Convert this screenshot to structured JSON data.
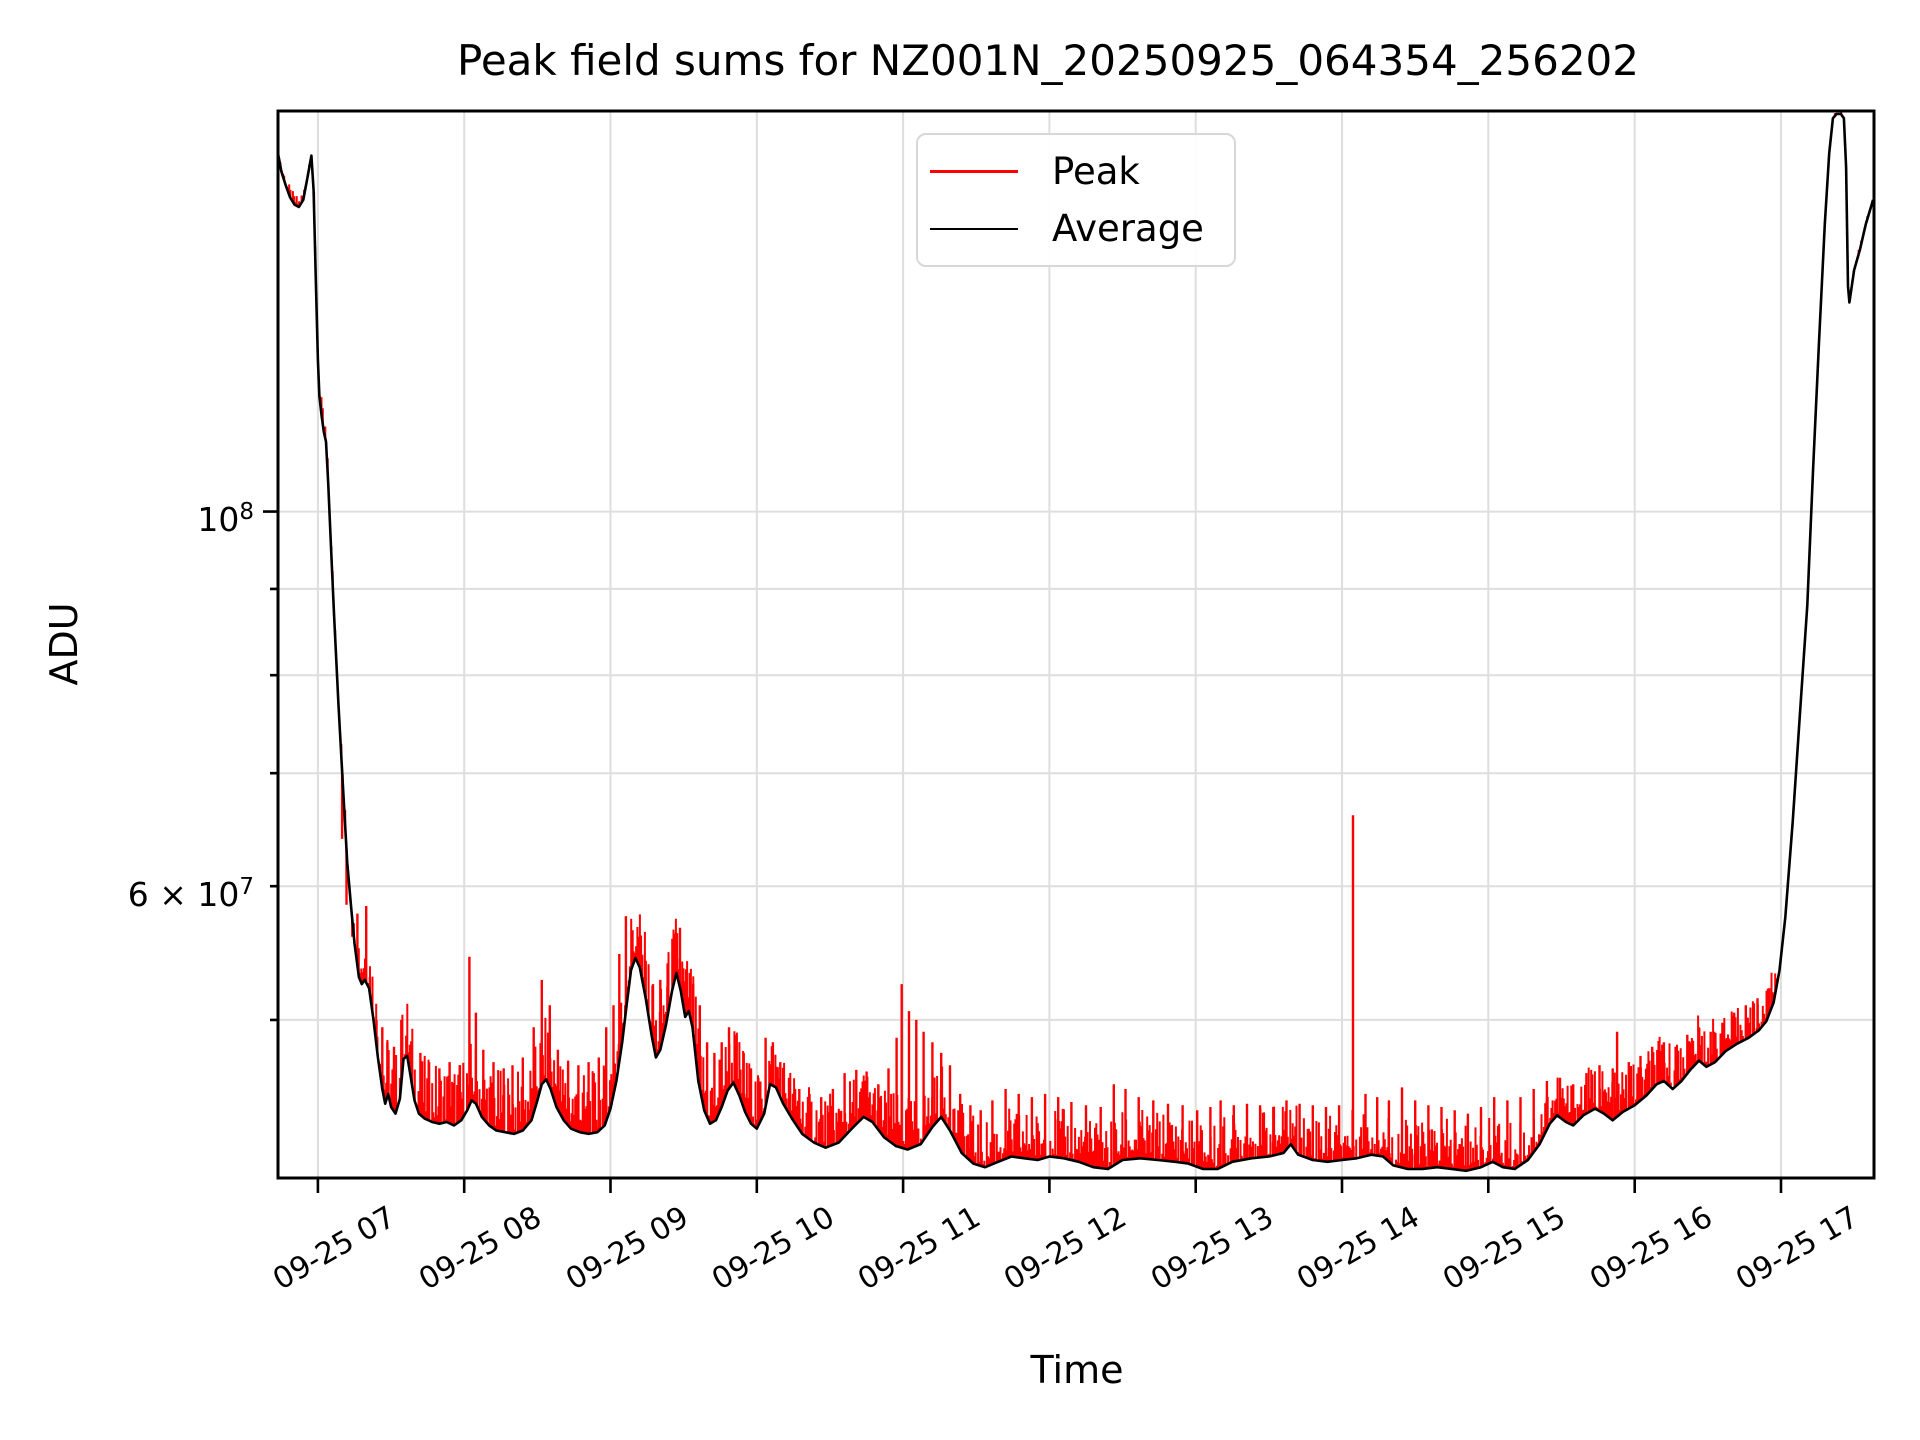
{
  "title": "Peak field sums for NZ001N_20250925_064354_256202",
  "axes": {
    "xlabel": "Time",
    "ylabel": "ADU",
    "x_tick_labels": [
      "09-25 07",
      "09-25 08",
      "09-25 09",
      "09-25 10",
      "09-25 11",
      "09-25 12",
      "09-25 13",
      "09-25 14",
      "09-25 15",
      "09-25 16",
      "09-25 17"
    ],
    "x_tick_hours": [
      7,
      8,
      9,
      10,
      11,
      12,
      13,
      14,
      15,
      16,
      17
    ],
    "y_tick_labels": [
      {
        "coeff": "",
        "base": "10",
        "exp": "8",
        "value_1e7": 10
      },
      {
        "coeff": "6 × ",
        "base": "10",
        "exp": "7",
        "value_1e7": 6
      }
    ]
  },
  "legend": {
    "items": [
      {
        "label": "Peak",
        "color": "#ff0000"
      },
      {
        "label": "Average",
        "color": "#000000"
      }
    ]
  },
  "colors": {
    "peak": "#ff0000",
    "average": "#000000",
    "grid": "#dedede",
    "spine": "#000000",
    "background": "#ffffff"
  },
  "chart_data": {
    "type": "line",
    "title": "Peak field sums for NZ001N_20250925_064354_256202",
    "xlabel": "Time",
    "ylabel": "ADU",
    "y_scale": "log",
    "grid": "both",
    "legend_position": "upper center",
    "x_unit": "hours on 09-25",
    "x_range_hours": [
      6.727,
      17.636
    ],
    "value_unit_adu": 10000000,
    "y_range_adu": [
      40300000,
      172700000
    ],
    "y_gridline_values_1e7": [
      10,
      9,
      8,
      7,
      6,
      5
    ],
    "y_major_value_1e7": 10,
    "series_names": [
      "Peak",
      "Average"
    ],
    "average_points": [
      [
        6.727,
        16.3
      ],
      [
        6.75,
        15.9
      ],
      [
        6.78,
        15.6
      ],
      [
        6.81,
        15.35
      ],
      [
        6.84,
        15.2
      ],
      [
        6.87,
        15.15
      ],
      [
        6.9,
        15.3
      ],
      [
        6.93,
        15.8
      ],
      [
        6.955,
        16.25
      ],
      [
        6.97,
        15.5
      ],
      [
        6.985,
        13.8
      ],
      [
        7.0,
        12.3
      ],
      [
        7.01,
        11.7
      ],
      [
        7.025,
        11.4
      ],
      [
        7.04,
        11.15
      ],
      [
        7.055,
        11.0
      ],
      [
        7.07,
        10.4
      ],
      [
        7.09,
        9.5
      ],
      [
        7.11,
        8.7
      ],
      [
        7.14,
        7.7
      ],
      [
        7.17,
        6.9
      ],
      [
        7.2,
        6.2
      ],
      [
        7.225,
        5.85
      ],
      [
        7.25,
        5.55
      ],
      [
        7.28,
        5.3
      ],
      [
        7.3,
        5.25
      ],
      [
        7.32,
        5.28
      ],
      [
        7.35,
        5.22
      ],
      [
        7.38,
        5.0
      ],
      [
        7.41,
        4.75
      ],
      [
        7.44,
        4.55
      ],
      [
        7.46,
        4.46
      ],
      [
        7.48,
        4.52
      ],
      [
        7.5,
        4.44
      ],
      [
        7.53,
        4.4
      ],
      [
        7.56,
        4.49
      ],
      [
        7.585,
        4.74
      ],
      [
        7.61,
        4.76
      ],
      [
        7.63,
        4.65
      ],
      [
        7.66,
        4.48
      ],
      [
        7.69,
        4.4
      ],
      [
        7.73,
        4.37
      ],
      [
        7.78,
        4.35
      ],
      [
        7.83,
        4.34
      ],
      [
        7.88,
        4.35
      ],
      [
        7.93,
        4.33
      ],
      [
        7.98,
        4.36
      ],
      [
        8.02,
        4.42
      ],
      [
        8.05,
        4.48
      ],
      [
        8.08,
        4.46
      ],
      [
        8.12,
        4.38
      ],
      [
        8.17,
        4.33
      ],
      [
        8.22,
        4.3
      ],
      [
        8.28,
        4.29
      ],
      [
        8.34,
        4.28
      ],
      [
        8.4,
        4.3
      ],
      [
        8.46,
        4.36
      ],
      [
        8.5,
        4.48
      ],
      [
        8.53,
        4.58
      ],
      [
        8.56,
        4.61
      ],
      [
        8.59,
        4.55
      ],
      [
        8.63,
        4.44
      ],
      [
        8.68,
        4.36
      ],
      [
        8.73,
        4.31
      ],
      [
        8.79,
        4.29
      ],
      [
        8.85,
        4.28
      ],
      [
        8.91,
        4.29
      ],
      [
        8.96,
        4.33
      ],
      [
        9.0,
        4.43
      ],
      [
        9.04,
        4.6
      ],
      [
        9.08,
        4.85
      ],
      [
        9.11,
        5.1
      ],
      [
        9.14,
        5.35
      ],
      [
        9.17,
        5.44
      ],
      [
        9.2,
        5.37
      ],
      [
        9.24,
        5.15
      ],
      [
        9.28,
        4.9
      ],
      [
        9.31,
        4.75
      ],
      [
        9.34,
        4.8
      ],
      [
        9.38,
        4.97
      ],
      [
        9.42,
        5.2
      ],
      [
        9.45,
        5.33
      ],
      [
        9.48,
        5.2
      ],
      [
        9.51,
        5.02
      ],
      [
        9.535,
        5.06
      ],
      [
        9.56,
        4.95
      ],
      [
        9.6,
        4.6
      ],
      [
        9.64,
        4.42
      ],
      [
        9.68,
        4.34
      ],
      [
        9.72,
        4.36
      ],
      [
        9.76,
        4.44
      ],
      [
        9.8,
        4.54
      ],
      [
        9.84,
        4.59
      ],
      [
        9.88,
        4.51
      ],
      [
        9.92,
        4.41
      ],
      [
        9.96,
        4.34
      ],
      [
        10.0,
        4.31
      ],
      [
        10.05,
        4.4
      ],
      [
        10.09,
        4.58
      ],
      [
        10.13,
        4.56
      ],
      [
        10.18,
        4.46
      ],
      [
        10.24,
        4.37
      ],
      [
        10.31,
        4.28
      ],
      [
        10.39,
        4.23
      ],
      [
        10.47,
        4.2
      ],
      [
        10.56,
        4.23
      ],
      [
        10.66,
        4.32
      ],
      [
        10.73,
        4.38
      ],
      [
        10.79,
        4.35
      ],
      [
        10.87,
        4.26
      ],
      [
        10.95,
        4.21
      ],
      [
        11.03,
        4.19
      ],
      [
        11.12,
        4.22
      ],
      [
        11.2,
        4.32
      ],
      [
        11.26,
        4.38
      ],
      [
        11.32,
        4.3
      ],
      [
        11.4,
        4.17
      ],
      [
        11.48,
        4.11
      ],
      [
        11.56,
        4.09
      ],
      [
        11.65,
        4.12
      ],
      [
        11.74,
        4.15
      ],
      [
        11.83,
        4.14
      ],
      [
        11.92,
        4.13
      ],
      [
        12.0,
        4.15
      ],
      [
        12.1,
        4.14
      ],
      [
        12.2,
        4.12
      ],
      [
        12.3,
        4.09
      ],
      [
        12.4,
        4.08
      ],
      [
        12.5,
        4.13
      ],
      [
        12.62,
        4.14
      ],
      [
        12.74,
        4.13
      ],
      [
        12.86,
        4.12
      ],
      [
        12.95,
        4.11
      ],
      [
        13.05,
        4.08
      ],
      [
        13.15,
        4.08
      ],
      [
        13.25,
        4.12
      ],
      [
        13.38,
        4.14
      ],
      [
        13.5,
        4.15
      ],
      [
        13.6,
        4.17
      ],
      [
        13.65,
        4.22
      ],
      [
        13.7,
        4.16
      ],
      [
        13.8,
        4.13
      ],
      [
        13.9,
        4.12
      ],
      [
        14.0,
        4.13
      ],
      [
        14.1,
        4.14
      ],
      [
        14.2,
        4.16
      ],
      [
        14.28,
        4.15
      ],
      [
        14.35,
        4.1
      ],
      [
        14.45,
        4.08
      ],
      [
        14.55,
        4.08
      ],
      [
        14.65,
        4.09
      ],
      [
        14.75,
        4.08
      ],
      [
        14.85,
        4.07
      ],
      [
        14.95,
        4.09
      ],
      [
        15.03,
        4.12
      ],
      [
        15.1,
        4.09
      ],
      [
        15.18,
        4.08
      ],
      [
        15.27,
        4.13
      ],
      [
        15.35,
        4.22
      ],
      [
        15.42,
        4.34
      ],
      [
        15.47,
        4.39
      ],
      [
        15.53,
        4.35
      ],
      [
        15.58,
        4.33
      ],
      [
        15.65,
        4.39
      ],
      [
        15.73,
        4.43
      ],
      [
        15.79,
        4.4
      ],
      [
        15.85,
        4.36
      ],
      [
        15.92,
        4.41
      ],
      [
        16.0,
        4.45
      ],
      [
        16.08,
        4.51
      ],
      [
        16.15,
        4.58
      ],
      [
        16.2,
        4.6
      ],
      [
        16.26,
        4.55
      ],
      [
        16.32,
        4.6
      ],
      [
        16.38,
        4.67
      ],
      [
        16.44,
        4.73
      ],
      [
        16.49,
        4.69
      ],
      [
        16.55,
        4.72
      ],
      [
        16.62,
        4.79
      ],
      [
        16.7,
        4.84
      ],
      [
        16.78,
        4.88
      ],
      [
        16.85,
        4.93
      ],
      [
        16.9,
        4.99
      ],
      [
        16.95,
        5.12
      ],
      [
        16.99,
        5.35
      ],
      [
        17.03,
        5.75
      ],
      [
        17.08,
        6.55
      ],
      [
        17.13,
        7.6
      ],
      [
        17.18,
        8.8
      ],
      [
        17.22,
        10.6
      ],
      [
        17.26,
        12.6
      ],
      [
        17.3,
        14.8
      ],
      [
        17.33,
        16.3
      ],
      [
        17.355,
        17.1
      ],
      [
        17.38,
        17.2
      ],
      [
        17.41,
        17.2
      ],
      [
        17.43,
        17.1
      ],
      [
        17.445,
        16.0
      ],
      [
        17.458,
        13.6
      ],
      [
        17.468,
        13.3
      ],
      [
        17.5,
        13.9
      ],
      [
        17.54,
        14.3
      ],
      [
        17.58,
        14.8
      ],
      [
        17.63,
        15.3
      ]
    ],
    "peak_spikes": [
      [
        7.165,
        6.4
      ],
      [
        7.195,
        5.85
      ],
      [
        7.235,
        5.6
      ],
      [
        7.27,
        5.78
      ],
      [
        7.33,
        5.84
      ],
      [
        7.355,
        5.3
      ],
      [
        7.4,
        5.0
      ],
      [
        7.44,
        4.95
      ],
      [
        7.475,
        4.85
      ],
      [
        7.52,
        4.82
      ],
      [
        7.57,
        5.0
      ],
      [
        7.64,
        4.85
      ],
      [
        7.7,
        4.78
      ],
      [
        7.76,
        4.72
      ],
      [
        7.83,
        4.68
      ],
      [
        7.9,
        4.72
      ],
      [
        7.97,
        4.7
      ],
      [
        8.035,
        5.45
      ],
      [
        8.08,
        5.05
      ],
      [
        8.13,
        4.8
      ],
      [
        8.2,
        4.72
      ],
      [
        8.27,
        4.68
      ],
      [
        8.33,
        4.7
      ],
      [
        8.4,
        4.75
      ],
      [
        8.475,
        4.95
      ],
      [
        8.53,
        5.28
      ],
      [
        8.585,
        5.1
      ],
      [
        8.64,
        4.8
      ],
      [
        8.71,
        4.73
      ],
      [
        8.78,
        4.7
      ],
      [
        8.85,
        4.72
      ],
      [
        8.92,
        4.75
      ],
      [
        8.97,
        4.95
      ],
      [
        9.02,
        5.1
      ],
      [
        9.06,
        5.47
      ],
      [
        9.105,
        5.76
      ],
      [
        9.15,
        5.65
      ],
      [
        9.19,
        5.6
      ],
      [
        9.24,
        5.42
      ],
      [
        9.29,
        5.25
      ],
      [
        9.34,
        5.28
      ],
      [
        9.39,
        5.4
      ],
      [
        9.435,
        5.47
      ],
      [
        9.475,
        5.67
      ],
      [
        9.52,
        5.35
      ],
      [
        9.565,
        5.25
      ],
      [
        9.61,
        5.1
      ],
      [
        9.66,
        4.85
      ],
      [
        9.71,
        4.78
      ],
      [
        9.76,
        4.85
      ],
      [
        9.81,
        4.95
      ],
      [
        9.86,
        4.9
      ],
      [
        9.91,
        4.78
      ],
      [
        9.96,
        4.68
      ],
      [
        10.01,
        4.62
      ],
      [
        10.06,
        4.88
      ],
      [
        10.11,
        4.85
      ],
      [
        10.16,
        4.72
      ],
      [
        10.22,
        4.62
      ],
      [
        10.29,
        4.55
      ],
      [
        10.36,
        4.52
      ],
      [
        10.44,
        4.5
      ],
      [
        10.52,
        4.55
      ],
      [
        10.6,
        4.65
      ],
      [
        10.68,
        4.67
      ],
      [
        10.75,
        4.66
      ],
      [
        10.83,
        4.58
      ],
      [
        10.9,
        4.68
      ],
      [
        10.955,
        4.88
      ],
      [
        10.99,
        5.25
      ],
      [
        11.04,
        5.06
      ],
      [
        11.09,
        5.0
      ],
      [
        11.14,
        4.92
      ],
      [
        11.2,
        4.85
      ],
      [
        11.26,
        4.78
      ],
      [
        11.32,
        4.7
      ],
      [
        11.39,
        4.52
      ],
      [
        11.46,
        4.45
      ],
      [
        11.53,
        4.42
      ],
      [
        11.61,
        4.48
      ],
      [
        11.7,
        4.55
      ],
      [
        11.79,
        4.52
      ],
      [
        11.88,
        4.5
      ],
      [
        11.97,
        4.52
      ],
      [
        12.06,
        4.5
      ],
      [
        12.15,
        4.47
      ],
      [
        12.25,
        4.45
      ],
      [
        12.35,
        4.44
      ],
      [
        12.44,
        4.58
      ],
      [
        12.52,
        4.55
      ],
      [
        12.61,
        4.5
      ],
      [
        12.71,
        4.48
      ],
      [
        12.81,
        4.46
      ],
      [
        12.91,
        4.45
      ],
      [
        13.01,
        4.42
      ],
      [
        13.1,
        4.44
      ],
      [
        13.17,
        4.48
      ],
      [
        13.26,
        4.45
      ],
      [
        13.35,
        4.46
      ],
      [
        13.44,
        4.45
      ],
      [
        13.53,
        4.44
      ],
      [
        13.62,
        4.48
      ],
      [
        13.71,
        4.46
      ],
      [
        13.8,
        4.45
      ],
      [
        13.89,
        4.44
      ],
      [
        13.98,
        4.45
      ],
      [
        14.075,
        6.61
      ],
      [
        14.16,
        4.52
      ],
      [
        14.24,
        4.5
      ],
      [
        14.32,
        4.48
      ],
      [
        14.41,
        4.56
      ],
      [
        14.5,
        4.48
      ],
      [
        14.59,
        4.45
      ],
      [
        14.68,
        4.44
      ],
      [
        14.77,
        4.42
      ],
      [
        14.86,
        4.4
      ],
      [
        14.95,
        4.44
      ],
      [
        15.04,
        4.5
      ],
      [
        15.13,
        4.48
      ],
      [
        15.22,
        4.5
      ],
      [
        15.31,
        4.55
      ],
      [
        15.4,
        4.6
      ],
      [
        15.49,
        4.62
      ],
      [
        15.58,
        4.58
      ],
      [
        15.67,
        4.65
      ],
      [
        15.76,
        4.7
      ],
      [
        15.85,
        4.68
      ],
      [
        15.88,
        4.92
      ],
      [
        15.96,
        4.72
      ],
      [
        16.04,
        4.76
      ],
      [
        16.12,
        4.82
      ],
      [
        16.2,
        4.85
      ],
      [
        16.28,
        4.82
      ],
      [
        16.36,
        4.9
      ],
      [
        16.44,
        4.95
      ],
      [
        16.52,
        4.92
      ],
      [
        16.6,
        4.98
      ],
      [
        16.68,
        5.05
      ],
      [
        16.76,
        5.1
      ],
      [
        16.84,
        5.15
      ],
      [
        16.92,
        5.22
      ]
    ],
    "peak_noise": {
      "step_hours": 0.0085,
      "segments": [
        [
          6.727,
          6.97,
          0.015
        ],
        [
          6.97,
          7.27,
          0.025
        ],
        [
          7.27,
          10.0,
          0.09
        ],
        [
          10.0,
          11.35,
          0.075
        ],
        [
          11.35,
          15.0,
          0.07
        ],
        [
          15.0,
          16.6,
          0.065
        ],
        [
          16.6,
          16.97,
          0.05
        ],
        [
          16.97,
          17.45,
          0.004
        ],
        [
          17.45,
          17.636,
          0.006
        ]
      ]
    }
  }
}
